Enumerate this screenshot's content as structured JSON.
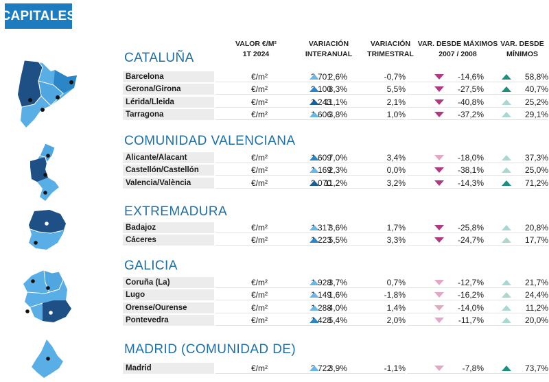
{
  "header": {
    "badge": "CAPITALES"
  },
  "columns": {
    "valor_l1": "VALOR €/M²",
    "valor_l2": "1T 2024",
    "interanual_l1": "VARIACIÓN",
    "interanual_l2": "INTERANUAL",
    "trimestral_l1": "VARIACIÓN",
    "trimestral_l2": "TRIMESTRAL",
    "maximos_l1": "VAR. DESDE MÁXIMOS",
    "maximos_l2": "2007 / 2008",
    "minimos_l1": "VAR. DESDE",
    "minimos_l2": "MÍNIMOS"
  },
  "colors": {
    "accent": "#1d7bbf",
    "up_dark": "#1c5f95",
    "up_mid": "#2b86c7",
    "up_light": "#6bb6e3",
    "down_dark": "#b03a80",
    "down_light": "#e2a9c6",
    "teal_dark": "#1f8f7d",
    "teal_light": "#a8d8cf",
    "map_dark": "#1e5086",
    "map_light": "#5aaee6"
  },
  "regions": [
    {
      "name": "CATALUÑA",
      "map_icon": "cataluna-map-icon",
      "rows": [
        {
          "city": "Barcelona",
          "valor": "3.701",
          "unit": "€/m²",
          "interanual": "2,6%",
          "i_level": "light",
          "trimestral": "-0,7%",
          "maximos": "-14,6%",
          "max_level": "dark",
          "minimos": "58,8%",
          "min_level": "dark"
        },
        {
          "city": "Gerona/Girona",
          "valor": "2.100",
          "unit": "€/m²",
          "interanual": "8,3%",
          "i_level": "mid",
          "trimestral": "5,5%",
          "maximos": "-27,5%",
          "max_level": "dark",
          "minimos": "40,7%",
          "min_level": "dark"
        },
        {
          "city": "Lérida/Lleida",
          "valor": "1.243",
          "unit": "€/m²",
          "interanual": "11,1%",
          "i_level": "dark",
          "trimestral": "2,1%",
          "maximos": "-40,8%",
          "max_level": "dark",
          "minimos": "25,2%",
          "min_level": "light"
        },
        {
          "city": "Tarragona",
          "valor": "1.606",
          "unit": "€/m²",
          "interanual": "3,8%",
          "i_level": "light",
          "trimestral": "1,0%",
          "maximos": "-37,2%",
          "max_level": "dark",
          "minimos": "29,1%",
          "min_level": "light"
        }
      ]
    },
    {
      "name": "COMUNIDAD VALENCIANA",
      "map_icon": "valencia-map-icon",
      "rows": [
        {
          "city": "Alicante/Alacant",
          "valor": "1.609",
          "unit": "€/m²",
          "interanual": "7,0%",
          "i_level": "mid",
          "trimestral": "3,4%",
          "maximos": "-18,0%",
          "max_level": "light",
          "minimos": "37,3%",
          "min_level": "light"
        },
        {
          "city": "Castellón/Castellón",
          "valor": "1.169",
          "unit": "€/m²",
          "interanual": "2,3%",
          "i_level": "light",
          "trimestral": "0,0%",
          "maximos": "-38,1%",
          "max_level": "dark",
          "minimos": "25,0%",
          "min_level": "light"
        },
        {
          "city": "Valencia/València",
          "valor": "2.070",
          "unit": "€/m²",
          "interanual": "11,2%",
          "i_level": "dark",
          "trimestral": "3,2%",
          "maximos": "-14,3%",
          "max_level": "dark",
          "minimos": "71,2%",
          "min_level": "dark"
        }
      ]
    },
    {
      "name": "EXTREMADURA",
      "map_icon": "extremadura-map-icon",
      "rows": [
        {
          "city": "Badajoz",
          "valor": "1.317",
          "unit": "€/m²",
          "interanual": "3,6%",
          "i_level": "light",
          "trimestral": "1,7%",
          "maximos": "-25,8%",
          "max_level": "dark",
          "minimos": "20,8%",
          "min_level": "light"
        },
        {
          "city": "Cáceres",
          "valor": "1.223",
          "unit": "€/m²",
          "interanual": "5,5%",
          "i_level": "mid",
          "trimestral": "3,3%",
          "maximos": "-24,7%",
          "max_level": "dark",
          "minimos": "17,7%",
          "min_level": "light"
        }
      ]
    },
    {
      "name": "GALICIA",
      "map_icon": "galicia-map-icon",
      "rows": [
        {
          "city": "Coruña (La)",
          "valor": "1.928",
          "unit": "€/m²",
          "interanual": "3,7%",
          "i_level": "light",
          "trimestral": "0,7%",
          "maximos": "-12,7%",
          "max_level": "light",
          "minimos": "21,7%",
          "min_level": "light"
        },
        {
          "city": "Lugo",
          "valor": "1.149",
          "unit": "€/m²",
          "interanual": "1,6%",
          "i_level": "light",
          "trimestral": "-1,8%",
          "maximos": "-16,2%",
          "max_level": "light",
          "minimos": "24,4%",
          "min_level": "light"
        },
        {
          "city": "Orense/Ourense",
          "valor": "1.288",
          "unit": "€/m²",
          "interanual": "4,0%",
          "i_level": "light",
          "trimestral": "1,4%",
          "maximos": "-14,0%",
          "max_level": "light",
          "minimos": "11,2%",
          "min_level": "light"
        },
        {
          "city": "Pontevedra",
          "valor": "1.428",
          "unit": "€/m²",
          "interanual": "5,4%",
          "i_level": "mid",
          "trimestral": "2,0%",
          "maximos": "-11,7%",
          "max_level": "light",
          "minimos": "20,0%",
          "min_level": "light"
        }
      ]
    },
    {
      "name": "MADRID (COMUNIDAD DE)",
      "map_icon": "madrid-map-icon",
      "rows": [
        {
          "city": "Madrid",
          "valor": "3.722",
          "unit": "€/m²",
          "interanual": "3,9%",
          "i_level": "light",
          "trimestral": "-1,1%",
          "maximos": "-7,8%",
          "max_level": "light",
          "minimos": "73,7%",
          "min_level": "dark"
        }
      ]
    }
  ]
}
